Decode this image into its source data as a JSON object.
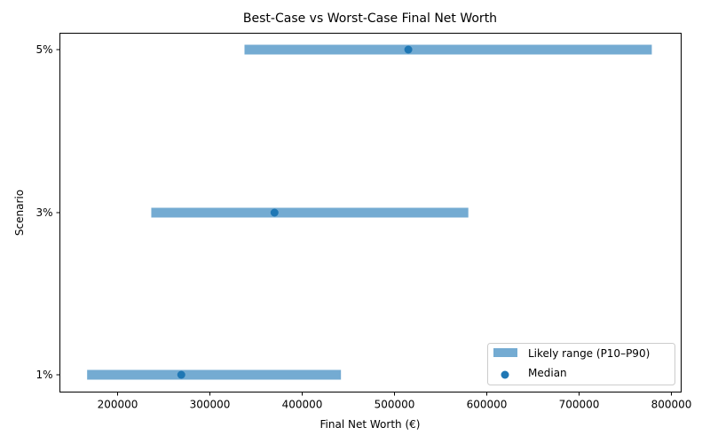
{
  "chart_data": {
    "type": "range-dot",
    "title": "Best-Case vs Worst-Case Final Net Worth",
    "xlabel": "Final Net Worth (€)",
    "ylabel": "Scenario",
    "xlim": [
      137500,
      810600
    ],
    "xticks": [
      200000,
      300000,
      400000,
      500000,
      600000,
      700000,
      800000
    ],
    "xtick_labels": [
      "200000",
      "300000",
      "400000",
      "500000",
      "600000",
      "700000",
      "800000"
    ],
    "categories": [
      "1%",
      "3%",
      "5%"
    ],
    "series": [
      {
        "name": "Likely range (P10–P90)",
        "kind": "range",
        "color": "#74abd2",
        "low": [
          167000,
          236500,
          337500
        ],
        "high": [
          442000,
          580000,
          778800
        ]
      },
      {
        "name": "Median",
        "kind": "scatter",
        "color": "#1f77b4",
        "values": [
          269000,
          370000,
          515000
        ]
      }
    ],
    "grid": false,
    "legend_position": "lower right"
  },
  "legend": {
    "items": [
      {
        "label": "Likely range (P10–P90)"
      },
      {
        "label": "Median"
      }
    ]
  }
}
